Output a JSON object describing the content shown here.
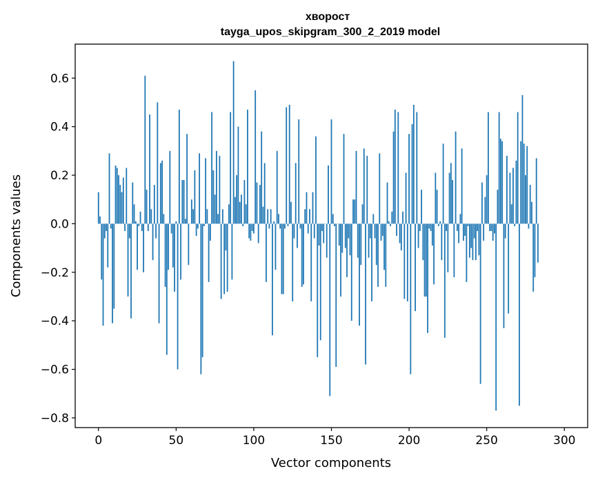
{
  "chart_data": {
    "type": "bar",
    "title": "хворост",
    "subtitle": "tayga_upos_skipgram_300_2_2019 model",
    "xlabel": "Vector components",
    "ylabel": "Components values",
    "xlim": [
      -15,
      315
    ],
    "ylim": [
      -0.84,
      0.74
    ],
    "xticks": [
      0,
      50,
      100,
      150,
      200,
      250,
      300
    ],
    "yticks": [
      -0.8,
      -0.6,
      -0.4,
      -0.2,
      0.0,
      0.2,
      0.4,
      0.6
    ],
    "ytick_labels": [
      "−0.8",
      "−0.6",
      "−0.4",
      "−0.2",
      "0.0",
      "0.2",
      "0.4",
      "0.6"
    ],
    "grid": false,
    "legend": "none",
    "bar_color": "#1f77b4",
    "x_start": 0,
    "values": [
      0.13,
      0.03,
      -0.23,
      -0.42,
      -0.06,
      -0.03,
      -0.18,
      0.29,
      -0.02,
      -0.41,
      -0.35,
      0.24,
      0.23,
      0.2,
      0.16,
      0.13,
      0.19,
      -0.03,
      0.23,
      -0.3,
      -0.06,
      -0.39,
      0.17,
      0.08,
      0.01,
      -0.19,
      -0.01,
      0.05,
      -0.03,
      -0.2,
      0.61,
      0.14,
      -0.03,
      0.45,
      0.06,
      -0.15,
      0.16,
      -0.06,
      0.5,
      -0.41,
      0.25,
      0.26,
      0.04,
      -0.26,
      -0.54,
      -0.19,
      0.3,
      -0.04,
      -0.18,
      -0.28,
      0.01,
      -0.6,
      0.47,
      -0.23,
      0.18,
      0.18,
      0.02,
      0.37,
      -0.17,
      0.0,
      0.1,
      0.06,
      0.22,
      -0.05,
      -0.02,
      0.29,
      -0.62,
      -0.55,
      -0.01,
      0.27,
      0.06,
      -0.24,
      -0.07,
      0.46,
      0.22,
      0.12,
      0.3,
      0.04,
      0.28,
      -0.31,
      0.06,
      -0.29,
      -0.11,
      -0.28,
      0.08,
      0.46,
      -0.23,
      0.67,
      0.11,
      0.2,
      0.4,
      0.09,
      0.12,
      -0.01,
      0.18,
      0.08,
      0.47,
      -0.06,
      -0.07,
      -0.03,
      -0.04,
      0.55,
      0.17,
      -0.08,
      0.16,
      0.38,
      0.07,
      0.25,
      -0.24,
      0.06,
      -0.02,
      0.06,
      -0.46,
      0.01,
      -0.19,
      0.3,
      0.04,
      -0.02,
      -0.29,
      -0.29,
      -0.02,
      0.48,
      -0.01,
      0.49,
      0.09,
      -0.32,
      -0.06,
      0.25,
      -0.1,
      0.43,
      -0.02,
      -0.26,
      -0.25,
      0.06,
      0.13,
      -0.04,
      0.06,
      -0.32,
      0.13,
      -0.06,
      0.36,
      -0.55,
      -0.09,
      -0.48,
      -0.03,
      -0.08,
      0.0,
      -0.14,
      0.24,
      -0.71,
      0.43,
      0.04,
      -0.01,
      -0.59,
      0.0,
      -0.09,
      -0.3,
      -0.12,
      0.37,
      -0.1,
      -0.22,
      -0.06,
      -0.13,
      -0.4,
      0.1,
      0.1,
      0.3,
      -0.14,
      -0.42,
      -0.17,
      0.08,
      0.31,
      -0.58,
      0.28,
      -0.14,
      -0.06,
      -0.32,
      0.04,
      -0.06,
      -0.17,
      -0.26,
      0.29,
      -0.07,
      -0.05,
      -0.19,
      -0.26,
      0.17,
      0.01,
      -0.01,
      0.05,
      0.38,
      0.47,
      -0.05,
      0.46,
      -0.08,
      -0.11,
      0.05,
      -0.31,
      0.21,
      -0.32,
      0.37,
      -0.62,
      0.41,
      0.49,
      -0.36,
      0.46,
      -0.1,
      -0.03,
      0.14,
      -0.15,
      -0.3,
      -0.3,
      -0.45,
      -0.02,
      -0.03,
      -0.09,
      -0.25,
      0.21,
      0.14,
      -0.01,
      0.01,
      -0.15,
      0.33,
      -0.47,
      -0.03,
      -0.2,
      0.21,
      0.25,
      0.18,
      -0.22,
      0.38,
      -0.03,
      -0.08,
      0.04,
      0.31,
      -0.07,
      -0.05,
      -0.24,
      -0.01,
      -0.14,
      -0.1,
      -0.15,
      -0.06,
      -0.15,
      -0.03,
      -0.13,
      -0.66,
      0.17,
      -0.07,
      0.11,
      0.2,
      0.46,
      -0.03,
      -0.03,
      -0.07,
      -0.04,
      -0.77,
      0.14,
      0.46,
      0.35,
      0.34,
      -0.43,
      -0.06,
      0.28,
      -0.37,
      0.21,
      0.08,
      0.23,
      -0.01,
      0.26,
      0.46,
      -0.75,
      0.34,
      0.53,
      0.33,
      0.2,
      0.32,
      -0.02,
      0.16,
      0.09,
      -0.28,
      -0.22,
      0.27,
      -0.16
    ],
    "subtitle_note": ""
  }
}
